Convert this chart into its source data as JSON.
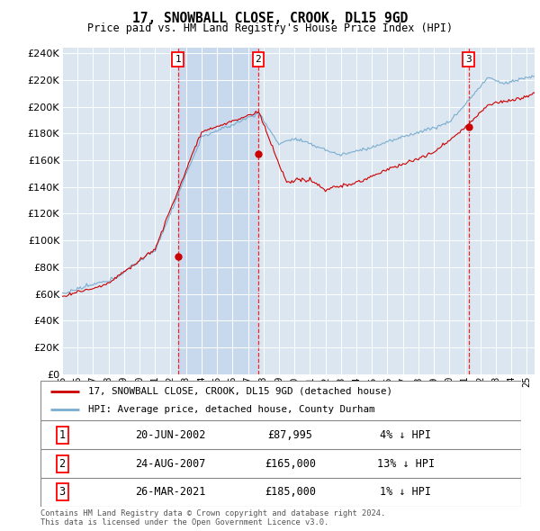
{
  "title": "17, SNOWBALL CLOSE, CROOK, DL15 9GD",
  "subtitle": "Price paid vs. HM Land Registry's House Price Index (HPI)",
  "plot_bg_color": "#dce6f1",
  "plot_bg_shaded": "#c8d8ed",
  "ylim": [
    0,
    244000
  ],
  "yticks": [
    0,
    20000,
    40000,
    60000,
    80000,
    100000,
    120000,
    140000,
    160000,
    180000,
    200000,
    220000,
    240000
  ],
  "year_start": 1995,
  "year_end": 2025,
  "sales": [
    {
      "num": 1,
      "date": "20-JUN-2002",
      "price": 87995,
      "year": 2002.47,
      "pct": "4%",
      "dir": "↓"
    },
    {
      "num": 2,
      "date": "24-AUG-2007",
      "price": 165000,
      "year": 2007.65,
      "pct": "13%",
      "dir": "↓"
    },
    {
      "num": 3,
      "date": "26-MAR-2021",
      "price": 185000,
      "year": 2021.23,
      "pct": "1%",
      "dir": "↓"
    }
  ],
  "legend_line1": "17, SNOWBALL CLOSE, CROOK, DL15 9GD (detached house)",
  "legend_line2": "HPI: Average price, detached house, County Durham",
  "footer1": "Contains HM Land Registry data © Crown copyright and database right 2024.",
  "footer2": "This data is licensed under the Open Government Licence v3.0.",
  "line_color_red": "#cc0000",
  "line_color_blue": "#7aadcf",
  "marker_color_red": "#cc0000"
}
